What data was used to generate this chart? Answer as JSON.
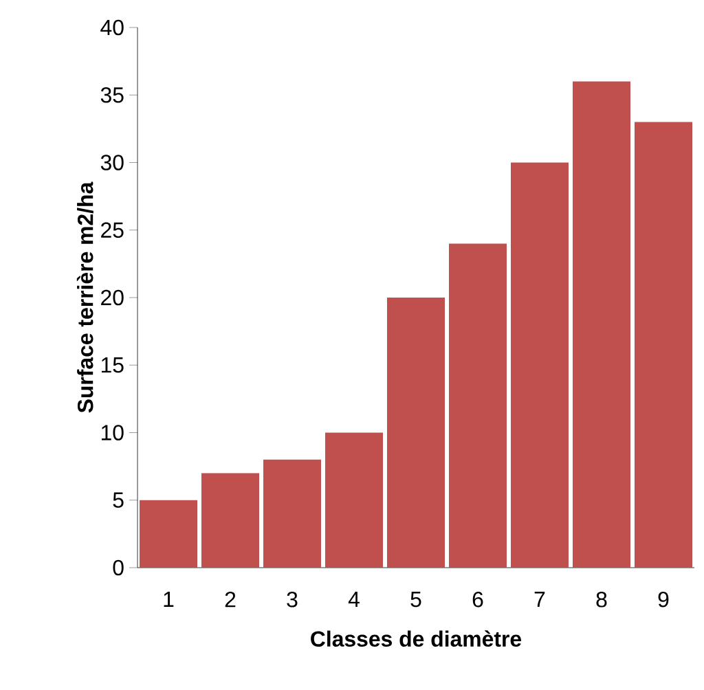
{
  "chart_data": {
    "type": "bar",
    "xlabel": "Classes de diamètre",
    "ylabel": "Surface terrière m2/ha",
    "categories": [
      "1",
      "2",
      "3",
      "4",
      "5",
      "6",
      "7",
      "8",
      "9"
    ],
    "values": [
      5,
      7,
      8,
      10,
      20,
      24,
      30,
      36,
      33
    ],
    "color": "#c0504d",
    "ylim": [
      0,
      40
    ],
    "yticks": [
      0,
      5,
      10,
      15,
      20,
      25,
      30,
      35,
      40
    ],
    "grid": false
  }
}
